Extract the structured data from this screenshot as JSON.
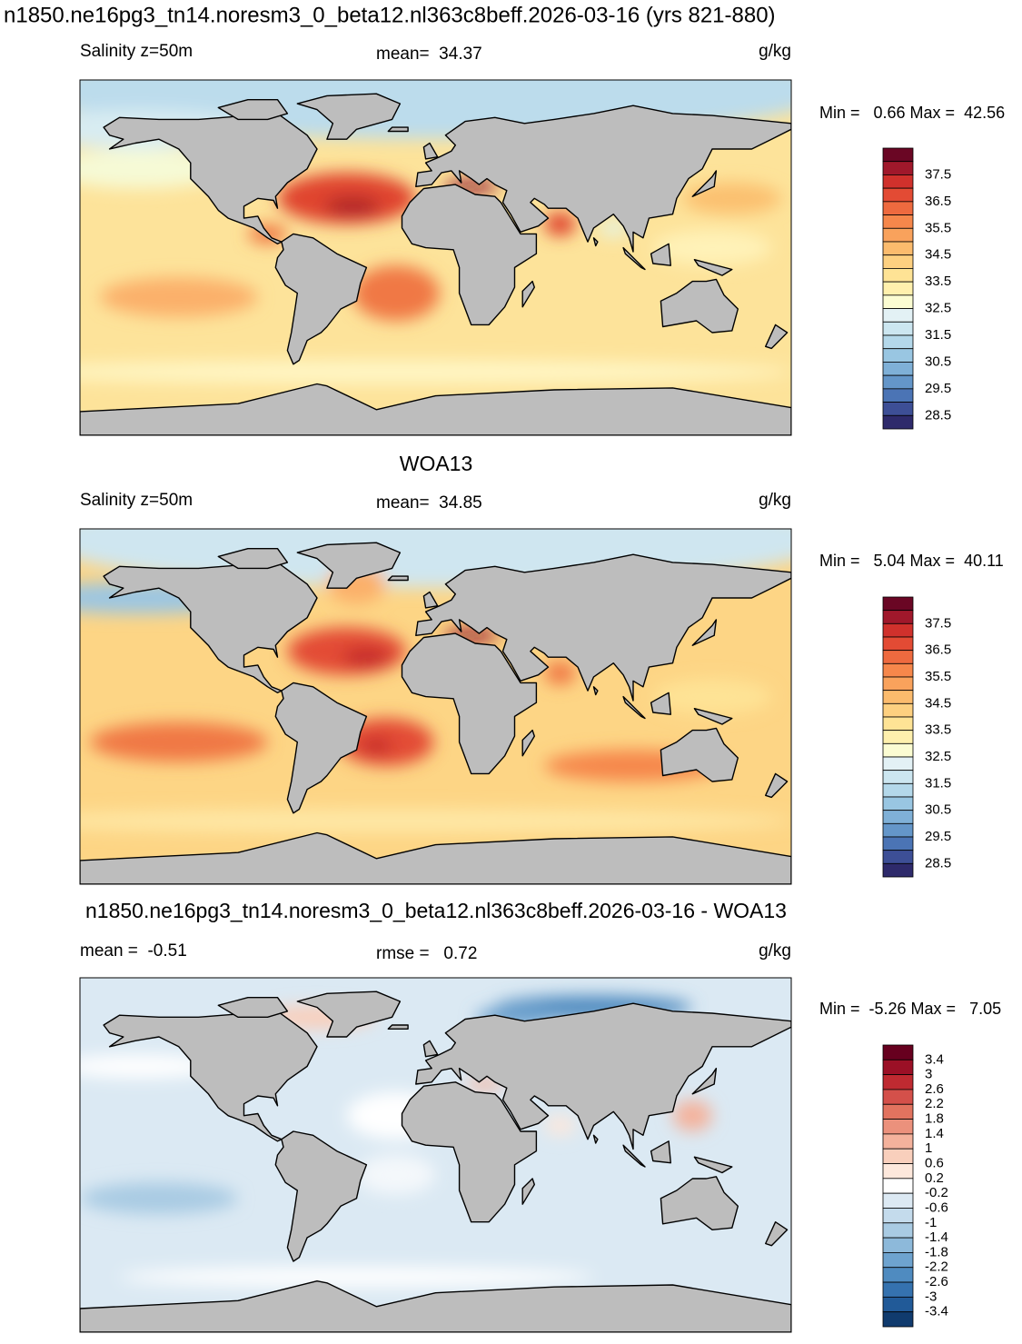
{
  "title": "n1850.ne16pg3_tn14.noresm3_0_beta12.nl363c8beff.2026-03-16 (yrs 821-880)",
  "panels": [
    {
      "left": "Salinity z=50m",
      "center": "mean=  34.37",
      "units": "g/kg",
      "minmax": "Min =   0.66 Max =  42.56",
      "colorbar": {
        "labels": [
          "37.5",
          "36.5",
          "35.5",
          "34.5",
          "33.5",
          "32.5",
          "31.5",
          "30.5",
          "29.5",
          "28.5"
        ],
        "colors": [
          "#6a0624",
          "#a0182b",
          "#d0312c",
          "#e34b34",
          "#ee6a3f",
          "#f6874b",
          "#f9a25c",
          "#fbbb6d",
          "#fdd080",
          "#fee395",
          "#fff0ad",
          "#fbfcd2",
          "#e3f1f5",
          "#cce6f0",
          "#b4d8ea",
          "#99c6e2",
          "#7fb0d7",
          "#6496c9",
          "#4b74b5",
          "#3d4f96",
          "#2e2a6b"
        ]
      }
    },
    {
      "title": "WOA13",
      "left": "Salinity z=50m",
      "center": "mean=  34.85",
      "units": "g/kg",
      "minmax": "Min =   5.04 Max =  40.11",
      "colorbar": {
        "labels": [
          "37.5",
          "36.5",
          "35.5",
          "34.5",
          "33.5",
          "32.5",
          "31.5",
          "30.5",
          "29.5",
          "28.5"
        ],
        "colors": [
          "#6a0624",
          "#a0182b",
          "#d0312c",
          "#e34b34",
          "#ee6a3f",
          "#f6874b",
          "#f9a25c",
          "#fbbb6d",
          "#fdd080",
          "#fee395",
          "#fff0ad",
          "#fbfcd2",
          "#e3f1f5",
          "#cce6f0",
          "#b4d8ea",
          "#99c6e2",
          "#7fb0d7",
          "#6496c9",
          "#4b74b5",
          "#3d4f96",
          "#2e2a6b"
        ]
      }
    },
    {
      "title": "n1850.ne16pg3_tn14.noresm3_0_beta12.nl363c8beff.2026-03-16 - WOA13",
      "left": "mean =  -0.51",
      "center": "rmse =   0.72",
      "units": "g/kg",
      "minmax": "Min =  -5.26 Max =   7.05",
      "colorbar": {
        "labels": [
          "3.4",
          "3",
          "2.6",
          "2.2",
          "1.8",
          "1.4",
          "1",
          "0.6",
          "0.2",
          "-0.2",
          "-0.6",
          "-1",
          "-1.4",
          "-1.8",
          "-2.2",
          "-2.6",
          "-3",
          "-3.4"
        ],
        "colors": [
          "#67001f",
          "#9b1026",
          "#bf2a31",
          "#d4504a",
          "#e2735f",
          "#eb917c",
          "#f4b29c",
          "#f9cfbc",
          "#fde8dc",
          "#ffffff",
          "#dce9f3",
          "#c4dbec",
          "#a9cbe3",
          "#8db9da",
          "#6ea3cf",
          "#4f8bc0",
          "#3572af",
          "#215a98",
          "#103b6e"
        ]
      }
    }
  ]
}
